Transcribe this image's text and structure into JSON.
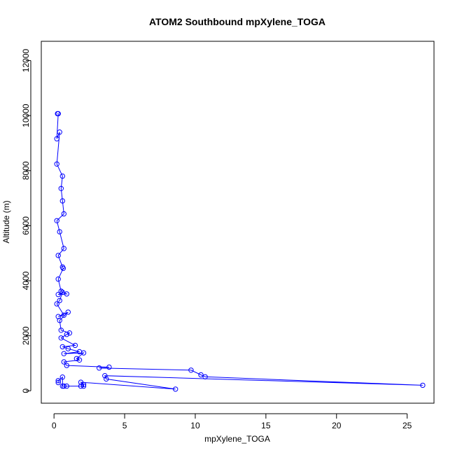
{
  "chart_data": {
    "type": "line",
    "title": "ATOM2 Southbound mpXylene_TOGA",
    "xlabel": "mpXylene_TOGA",
    "ylabel": "Altitude (m)",
    "xlim": [
      -0.9,
      26.9
    ],
    "ylim": [
      -450,
      12700
    ],
    "xticks": [
      0,
      5,
      10,
      15,
      20,
      25
    ],
    "yticks": [
      0,
      2000,
      4000,
      6000,
      8000,
      10000,
      12000
    ],
    "grid": false,
    "legend": "none",
    "color": "#0000ff",
    "marker": "open-circle",
    "series": [
      {
        "points": [
          [
            0.25,
            10070
          ],
          [
            0.3,
            10070
          ],
          [
            0.2,
            9160
          ],
          [
            0.4,
            9400
          ],
          [
            0.2,
            8240
          ],
          [
            0.6,
            7800
          ],
          [
            0.5,
            7350
          ],
          [
            0.6,
            6900
          ],
          [
            0.7,
            6430
          ],
          [
            0.2,
            6180
          ],
          [
            0.4,
            5780
          ],
          [
            0.7,
            5170
          ],
          [
            0.3,
            4920
          ],
          [
            0.6,
            4500
          ],
          [
            0.65,
            4450
          ],
          [
            0.3,
            4060
          ],
          [
            0.5,
            3620
          ],
          [
            0.9,
            3520
          ],
          [
            0.3,
            3500
          ],
          [
            0.6,
            3580
          ],
          [
            0.4,
            3280
          ],
          [
            0.2,
            3160
          ],
          [
            0.7,
            2750
          ],
          [
            0.3,
            2700
          ],
          [
            1.0,
            2860
          ],
          [
            0.4,
            2560
          ],
          [
            0.5,
            2200
          ],
          [
            1.1,
            2100
          ],
          [
            0.9,
            2050
          ],
          [
            0.5,
            1920
          ],
          [
            1.5,
            1650
          ],
          [
            0.6,
            1600
          ],
          [
            1.0,
            1530
          ],
          [
            1.8,
            1420
          ],
          [
            0.7,
            1350
          ],
          [
            2.1,
            1380
          ],
          [
            1.6,
            1170
          ],
          [
            1.8,
            1120
          ],
          [
            0.7,
            1050
          ],
          [
            0.9,
            920
          ],
          [
            3.9,
            860
          ],
          [
            3.2,
            830
          ],
          [
            9.7,
            750
          ],
          [
            10.4,
            580
          ],
          [
            10.7,
            510
          ],
          [
            26.1,
            200
          ],
          [
            3.6,
            550
          ],
          [
            3.7,
            430
          ],
          [
            8.6,
            60
          ],
          [
            1.9,
            310
          ],
          [
            2.1,
            230
          ],
          [
            2.1,
            170
          ],
          [
            1.9,
            170
          ],
          [
            0.9,
            170
          ],
          [
            0.7,
            170
          ],
          [
            0.6,
            170
          ],
          [
            0.6,
            500
          ],
          [
            0.3,
            370
          ],
          [
            0.3,
            300
          ]
        ]
      }
    ]
  }
}
